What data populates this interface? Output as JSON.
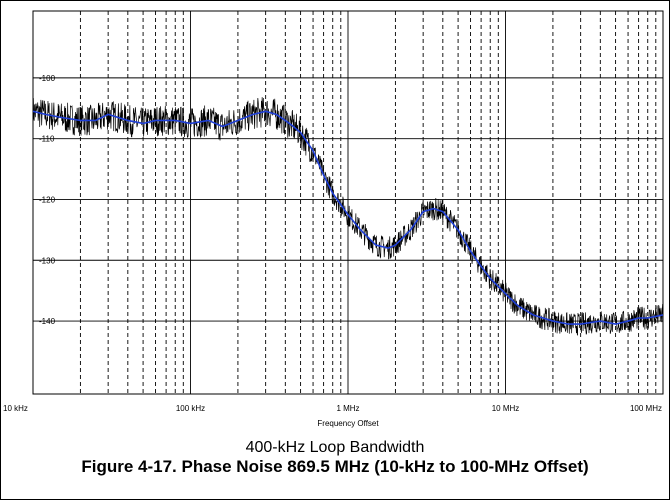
{
  "figure": {
    "subtitle": "400-kHz Loop Bandwidth",
    "caption": "Figure 4-17. Phase Noise 869.5 MHz (10-kHz to 100-MHz Offset)"
  },
  "chart_data": {
    "type": "line",
    "title": "",
    "xlabel": "Frequency Offset",
    "ylabel": "",
    "x_scale": "log",
    "xlim": [
      10000,
      100000000
    ],
    "ylim": [
      -152,
      -89
    ],
    "x_ticks": [
      {
        "value": 10000,
        "label": "10 kHz"
      },
      {
        "value": 100000,
        "label": "100 kHz"
      },
      {
        "value": 1000000,
        "label": "1 MHz"
      },
      {
        "value": 10000000,
        "label": "10 MHz"
      },
      {
        "value": 100000000,
        "label": "100 MHz"
      }
    ],
    "y_ticks": [
      {
        "value": -100,
        "label": "-100"
      },
      {
        "value": -110,
        "label": "-110"
      },
      {
        "value": -120,
        "label": "-120"
      },
      {
        "value": -130,
        "label": "-130"
      },
      {
        "value": -140,
        "label": "-140"
      }
    ],
    "grid": true,
    "legend": "none",
    "series": [
      {
        "role": "measured",
        "color": "#000000",
        "x": [
          10000,
          12000,
          15000,
          20000,
          25000,
          30000,
          40000,
          50000,
          60000,
          80000,
          100000,
          130000,
          160000,
          200000,
          250000,
          300000,
          350000,
          400000,
          450000,
          500000,
          600000,
          700000,
          800000,
          1000000,
          1200000,
          1500000,
          1800000,
          2000000,
          2500000,
          3000000,
          3500000,
          4000000,
          5000000,
          6000000,
          7000000,
          8000000,
          10000000,
          12000000,
          15000000,
          20000000,
          25000000,
          30000000,
          40000000,
          50000000,
          60000000,
          70000000,
          80000000,
          100000000
        ],
        "y": [
          -105.5,
          -106,
          -106.5,
          -107,
          -107,
          -106,
          -107,
          -107.5,
          -107,
          -107,
          -107.5,
          -107,
          -108,
          -107,
          -106,
          -105.5,
          -106,
          -107,
          -108,
          -109,
          -112,
          -116,
          -119,
          -122.5,
          -125,
          -127.5,
          -128,
          -127.5,
          -125,
          -122,
          -121.5,
          -122,
          -125,
          -128.5,
          -131,
          -133,
          -135.5,
          -137.5,
          -139,
          -140,
          -140.5,
          -140.5,
          -140,
          -140.5,
          -140,
          -139.5,
          -139.5,
          -139
        ]
      },
      {
        "role": "smoothed",
        "color": "#1f3fd6",
        "x": [
          10000,
          12000,
          15000,
          20000,
          25000,
          30000,
          40000,
          50000,
          60000,
          80000,
          100000,
          130000,
          160000,
          200000,
          250000,
          300000,
          350000,
          400000,
          450000,
          500000,
          600000,
          700000,
          800000,
          1000000,
          1200000,
          1500000,
          1800000,
          2000000,
          2500000,
          3000000,
          3500000,
          4000000,
          5000000,
          6000000,
          7000000,
          8000000,
          10000000,
          12000000,
          15000000,
          20000000,
          25000000,
          30000000,
          40000000,
          50000000,
          60000000,
          70000000,
          80000000,
          100000000
        ],
        "y": [
          -105.5,
          -106,
          -106.5,
          -107,
          -107,
          -106,
          -107,
          -107.5,
          -107,
          -107,
          -107.5,
          -107,
          -108,
          -107,
          -106,
          -105.5,
          -106,
          -107,
          -108,
          -109,
          -112,
          -116,
          -119,
          -122.5,
          -125,
          -127.5,
          -128,
          -127.5,
          -125,
          -122,
          -121.5,
          -122,
          -125,
          -128.5,
          -131,
          -133,
          -135.5,
          -137.5,
          -139,
          -140,
          -140.5,
          -140.5,
          -140,
          -140.5,
          -140,
          -139.5,
          -139.5,
          -139
        ]
      }
    ]
  }
}
